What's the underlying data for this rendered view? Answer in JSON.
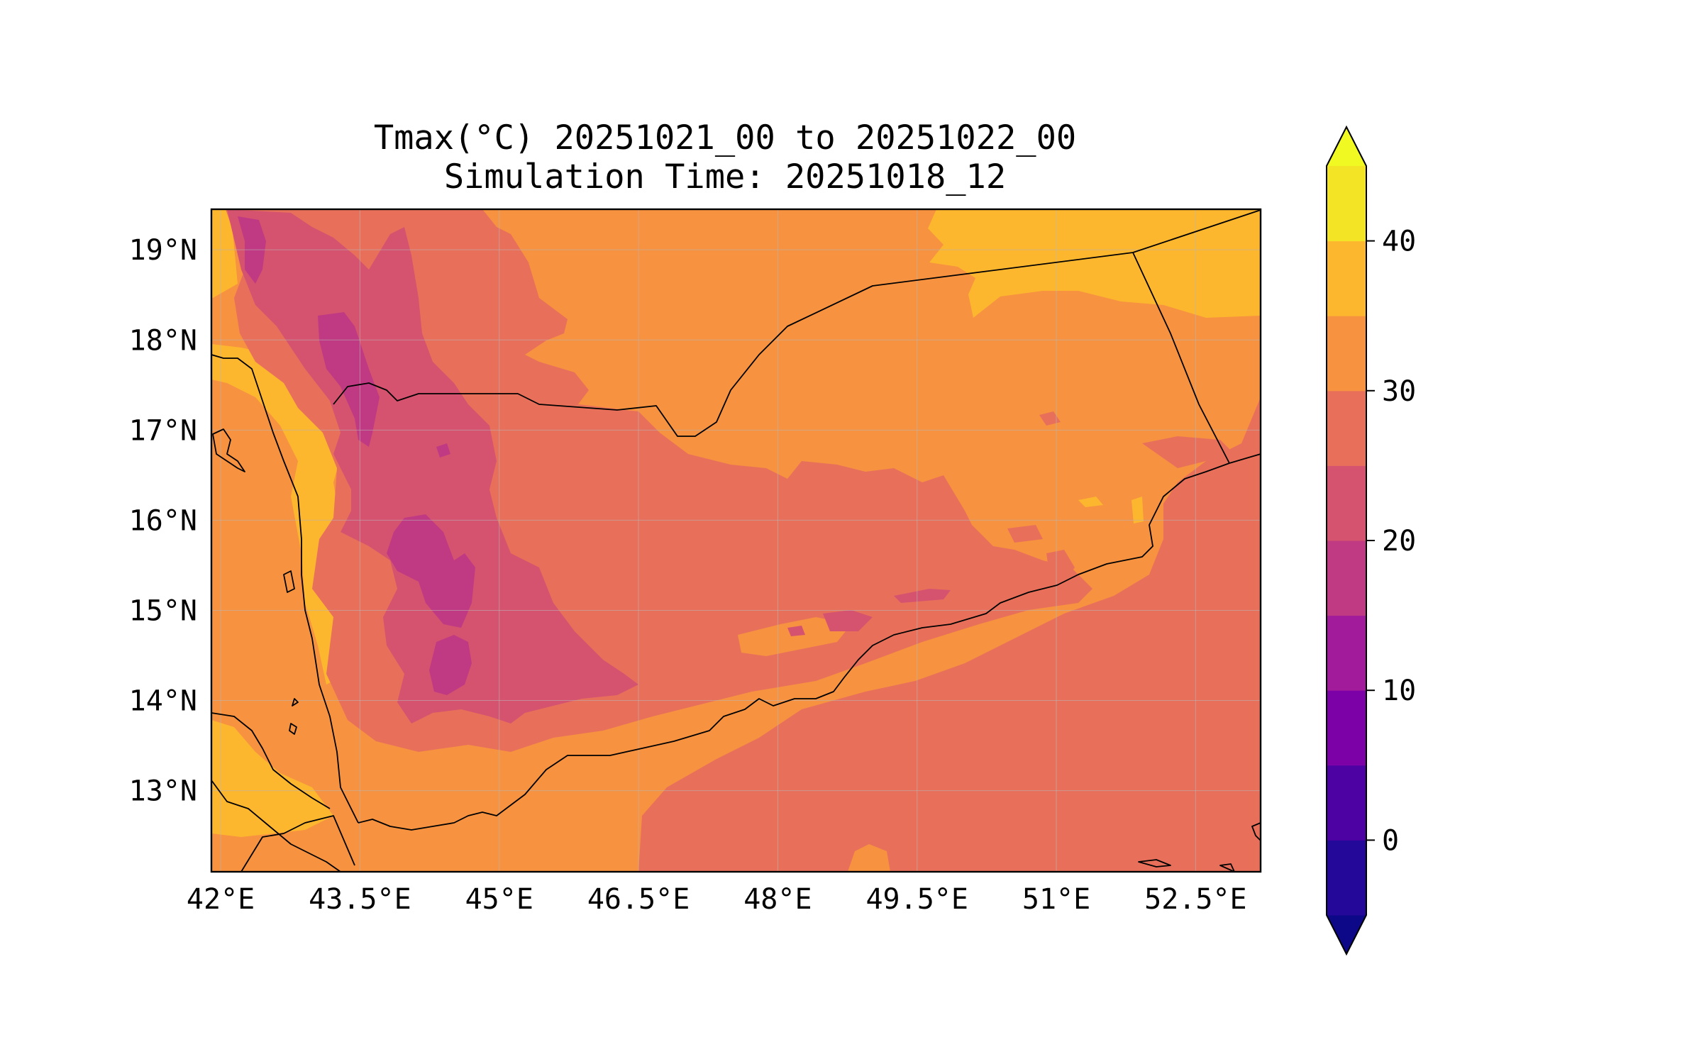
{
  "title": {
    "line1": "Tmax(°C) 20251021_00 to 20251022_00",
    "line2": "Simulation Time: 20251018_12"
  },
  "chart_data": {
    "type": "heatmap",
    "variable": "Tmax",
    "unit": "°C",
    "x_ticks": [
      "42°E",
      "43.5°E",
      "45°E",
      "46.5°E",
      "48°E",
      "49.5°E",
      "51°E",
      "52.5°E"
    ],
    "y_ticks": [
      "19°N",
      "18°N",
      "17°N",
      "16°N",
      "15°N",
      "14°N",
      "13°N"
    ],
    "x_tick_values": [
      42,
      43.5,
      45,
      46.5,
      48,
      49.5,
      51,
      52.5
    ],
    "y_tick_values": [
      19,
      18,
      17,
      16,
      15,
      14,
      13
    ],
    "xlim": [
      41.9,
      53.2
    ],
    "ylim": [
      12.1,
      19.45
    ],
    "grid": true,
    "colorbar": {
      "levels": [
        -5,
        0,
        5,
        10,
        15,
        20,
        25,
        30,
        35,
        40,
        45
      ],
      "colors": [
        "#23089a",
        "#4d02a3",
        "#7c02a8",
        "#a11b9b",
        "#c03a83",
        "#d5536f",
        "#e8705b",
        "#f69240",
        "#fdb72f",
        "#f3e526"
      ],
      "extend_low_color": "#0d0887",
      "extend_high_color": "#f0f921",
      "tick_labels": [
        "0",
        "10",
        "20",
        "30",
        "40"
      ],
      "tick_values": [
        0,
        10,
        20,
        30,
        40
      ],
      "extend": "both"
    }
  }
}
